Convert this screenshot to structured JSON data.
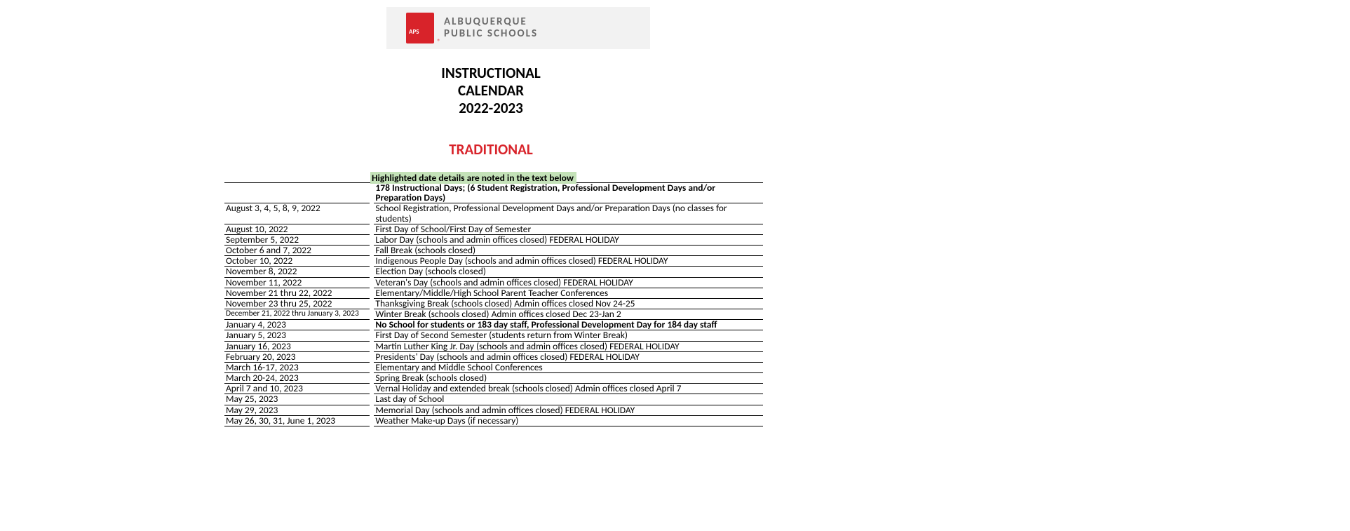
{
  "logo": {
    "line1": "ALBUQUERQUE",
    "line2": "PUBLIC SCHOOLS",
    "mark_bg": "#d8232a"
  },
  "title": {
    "line1": "INSTRUCTIONAL",
    "line2": "CALENDAR",
    "line3": "2022-2023"
  },
  "subtitle": "TRADITIONAL",
  "highlight_note": "Highlighted date details are noted in the text below",
  "header_desc": "178 Instructional Days; (6 Student Registration, Professional Development Days and/or Preparation Days)",
  "rows": [
    {
      "date": "August 3, 4, 5, 8, 9, 2022",
      "desc": "School Registration, Professional Development Days and/or Preparation Days (no classes for students)"
    },
    {
      "date": "August 10, 2022",
      "desc": "First Day of School/First Day of Semester"
    },
    {
      "date": "September 5, 2022",
      "desc": "Labor Day  (schools and admin offices closed)  FEDERAL HOLIDAY"
    },
    {
      "date": "October 6 and 7, 2022",
      "desc": "Fall Break (schools closed)"
    },
    {
      "date": "October 10, 2022",
      "desc": "Indigenous People Day  (schools and admin offices closed)  FEDERAL HOLIDAY"
    },
    {
      "date": "November 8, 2022",
      "desc": "Election Day (schools closed)"
    },
    {
      "date": "November 11, 2022",
      "desc": "Veteran's Day  (schools and admin offices closed)  FEDERAL HOLIDAY"
    },
    {
      "date": "November 21 thru 22, 2022",
      "desc": "Elementary/Middle/High School Parent Teacher Conferences"
    },
    {
      "date": "November 23 thru 25, 2022",
      "desc": "Thanksgiving Break (schools closed)  Admin offices closed Nov 24-25"
    },
    {
      "date": "December 21, 2022 thru January 3, 2023",
      "desc": "Winter Break (schools closed) Admin offices closed Dec 23-Jan 2",
      "small": true
    },
    {
      "date": "January 4, 2023",
      "desc": "No School for students or 183 day staff, Professional Development Day for 184 day staff",
      "bold": true
    },
    {
      "date": "January 5, 2023",
      "desc": "First Day of Second Semester (students return from Winter Break)"
    },
    {
      "date": "January 16, 2023",
      "desc": "Martin Luther King Jr. Day  (schools and admin offices closed)  FEDERAL HOLIDAY"
    },
    {
      "date": "February 20, 2023",
      "desc": "Presidents' Day (schools and admin offices closed)  FEDERAL HOLIDAY"
    },
    {
      "date": "March 16-17, 2023",
      "desc": "Elementary and Middle School Conferences"
    },
    {
      "date": "March 20-24, 2023",
      "desc": "Spring Break (schools closed)"
    },
    {
      "date": "April 7 and 10, 2023",
      "desc": "Vernal Holiday and extended break (schools closed) Admin offices closed April 7"
    },
    {
      "date": "May 25, 2023",
      "desc": "Last day of School"
    },
    {
      "date": "May 29, 2023",
      "desc": "Memorial Day (schools and admin offices closed)  FEDERAL HOLIDAY"
    },
    {
      "date": "May 26, 30, 31, June 1, 2023",
      "desc": "Weather Make-up Days (if necessary)"
    }
  ],
  "colors": {
    "red": "#d8232a",
    "highlight_bg": "#c4e2b8",
    "logo_bar_bg": "#f2f2f2",
    "logo_text": "#6b6b6b"
  }
}
